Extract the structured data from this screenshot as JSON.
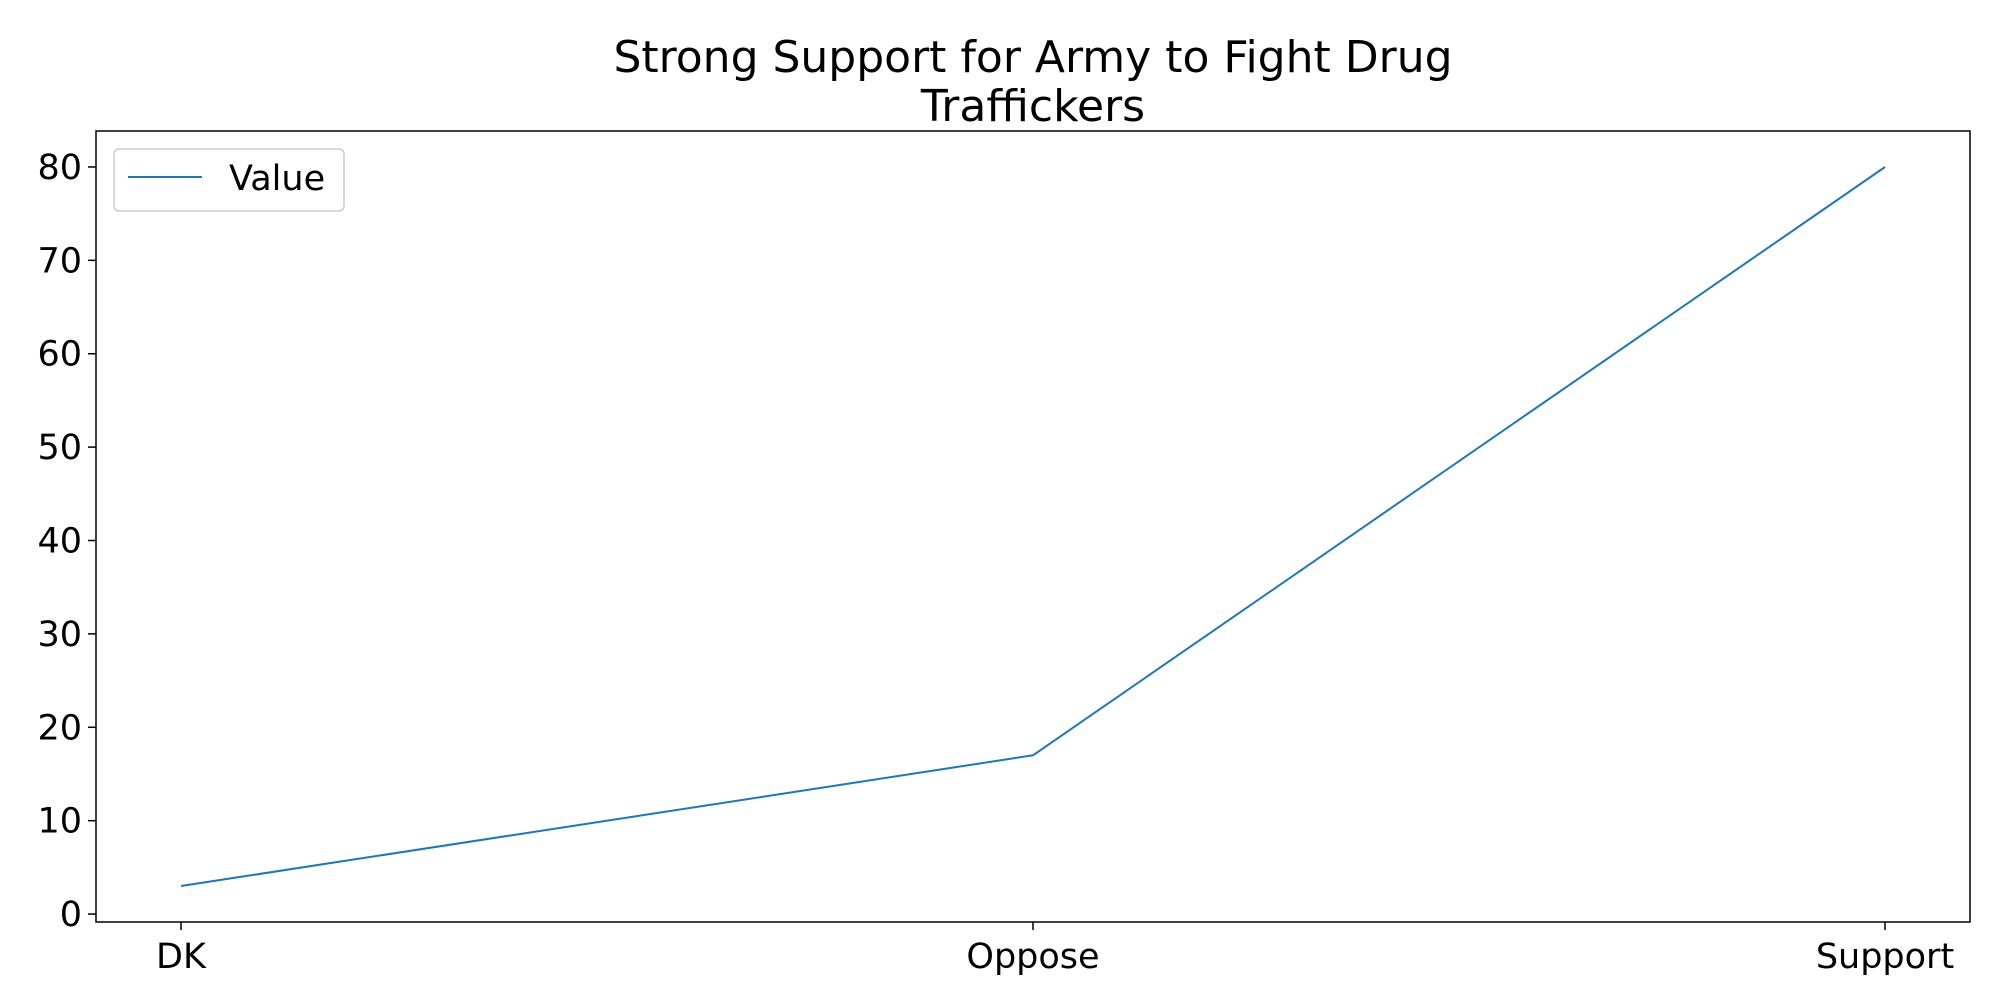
{
  "chart_data": {
    "type": "line",
    "title_lines": [
      "Strong Support for Army to Fight Drug",
      "Traffickers"
    ],
    "categories": [
      "DK",
      "Oppose",
      "Support"
    ],
    "series": [
      {
        "name": "Value",
        "values": [
          3,
          17,
          80
        ],
        "color": "#1f77b4"
      }
    ],
    "xlabel": "",
    "ylabel": "",
    "ylim": [
      -0.85,
      83.85
    ],
    "yticks": [
      0,
      10,
      20,
      30,
      40,
      50,
      60,
      70,
      80
    ],
    "grid": false,
    "legend": "upper-left"
  }
}
